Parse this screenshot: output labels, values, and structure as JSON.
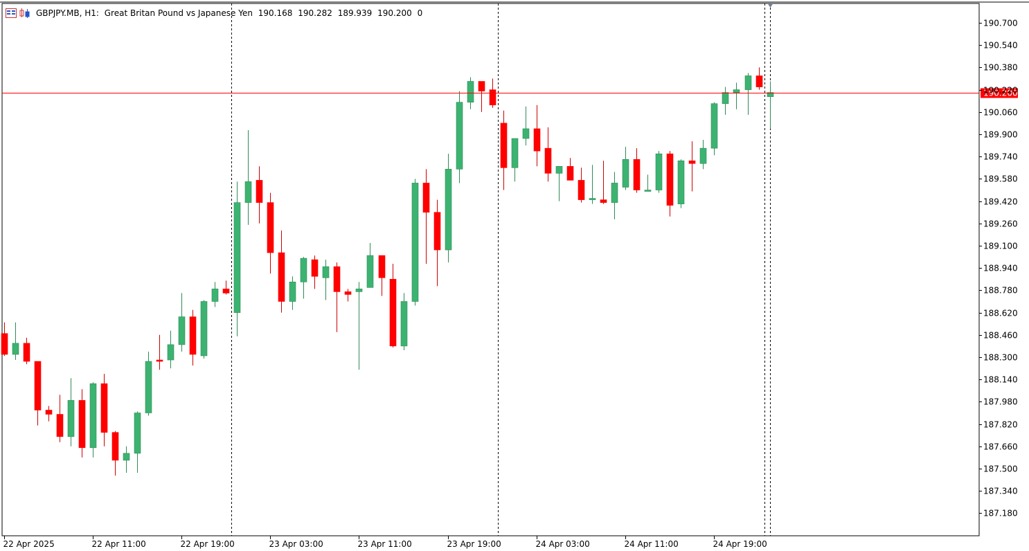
{
  "header": {
    "symbol": "GBPJPY.MB, H1:",
    "description": "Great Britan Pound vs Japanese Yen",
    "open": "190.168",
    "high": "190.282",
    "low": "189.939",
    "close": "190.200",
    "volume": "0"
  },
  "colors": {
    "bull": "#3cb371",
    "bear": "#ff0000",
    "wick_bull": "#2e8b57",
    "wick_bear": "#cc0000",
    "price_line": "#ff0000",
    "grid": "#000000",
    "axis_text": "#000000"
  },
  "chart_data": {
    "type": "candlestick",
    "current_price": "190.200",
    "period_separators_after_index": [
      20,
      44,
      68
    ],
    "y_ticks": [
      "190.700",
      "190.540",
      "190.380",
      "190.220",
      "190.060",
      "189.900",
      "189.740",
      "189.580",
      "189.420",
      "189.260",
      "189.100",
      "188.940",
      "188.780",
      "188.620",
      "188.460",
      "188.300",
      "188.140",
      "187.980",
      "187.820",
      "187.660",
      "187.500",
      "187.340",
      "187.180"
    ],
    "x_ticks": [
      {
        "label": "22 Apr 2025",
        "index": 0
      },
      {
        "label": "22 Apr 11:00",
        "index": 8
      },
      {
        "label": "22 Apr 19:00",
        "index": 16
      },
      {
        "label": "23 Apr 03:00",
        "index": 24
      },
      {
        "label": "23 Apr 11:00",
        "index": 32
      },
      {
        "label": "23 Apr 19:00",
        "index": 40
      },
      {
        "label": "24 Apr 03:00",
        "index": 48
      },
      {
        "label": "24 Apr 11:00",
        "index": 56
      },
      {
        "label": "24 Apr 19:00",
        "index": 64
      }
    ],
    "candles": [
      {
        "o": 188.47,
        "h": 188.55,
        "l": 188.31,
        "c": 188.32
      },
      {
        "o": 188.32,
        "h": 188.55,
        "l": 188.28,
        "c": 188.4
      },
      {
        "o": 188.4,
        "h": 188.44,
        "l": 188.25,
        "c": 188.27
      },
      {
        "o": 188.27,
        "h": 188.27,
        "l": 187.81,
        "c": 187.92
      },
      {
        "o": 187.92,
        "h": 187.95,
        "l": 187.84,
        "c": 187.89
      },
      {
        "o": 187.89,
        "h": 188.03,
        "l": 187.69,
        "c": 187.73
      },
      {
        "o": 187.73,
        "h": 188.15,
        "l": 187.66,
        "c": 187.99
      },
      {
        "o": 187.99,
        "h": 188.07,
        "l": 187.58,
        "c": 187.65
      },
      {
        "o": 187.65,
        "h": 188.12,
        "l": 187.58,
        "c": 188.11
      },
      {
        "o": 188.11,
        "h": 188.18,
        "l": 187.66,
        "c": 187.76
      },
      {
        "o": 187.76,
        "h": 187.77,
        "l": 187.45,
        "c": 187.56
      },
      {
        "o": 187.56,
        "h": 187.66,
        "l": 187.47,
        "c": 187.61
      },
      {
        "o": 187.61,
        "h": 187.91,
        "l": 187.47,
        "c": 187.9
      },
      {
        "o": 187.9,
        "h": 188.34,
        "l": 187.88,
        "c": 188.27
      },
      {
        "o": 188.28,
        "h": 188.46,
        "l": 188.21,
        "c": 188.27
      },
      {
        "o": 188.28,
        "h": 188.49,
        "l": 188.22,
        "c": 188.39
      },
      {
        "o": 188.39,
        "h": 188.76,
        "l": 188.34,
        "c": 188.59
      },
      {
        "o": 188.59,
        "h": 188.64,
        "l": 188.24,
        "c": 188.32
      },
      {
        "o": 188.31,
        "h": 188.71,
        "l": 188.29,
        "c": 188.7
      },
      {
        "o": 188.7,
        "h": 188.84,
        "l": 188.66,
        "c": 188.79
      },
      {
        "o": 188.79,
        "h": 188.85,
        "l": 188.75,
        "c": 188.76
      },
      {
        "o": 188.62,
        "h": 189.56,
        "l": 188.45,
        "c": 189.41
      },
      {
        "o": 189.41,
        "h": 189.93,
        "l": 189.25,
        "c": 189.56
      },
      {
        "o": 189.57,
        "h": 189.67,
        "l": 189.26,
        "c": 189.41
      },
      {
        "o": 189.41,
        "h": 189.48,
        "l": 188.9,
        "c": 189.05
      },
      {
        "o": 189.05,
        "h": 189.21,
        "l": 188.62,
        "c": 188.7
      },
      {
        "o": 188.7,
        "h": 188.88,
        "l": 188.64,
        "c": 188.84
      },
      {
        "o": 188.84,
        "h": 189.02,
        "l": 188.72,
        "c": 189.01
      },
      {
        "o": 189.0,
        "h": 189.03,
        "l": 188.79,
        "c": 188.88
      },
      {
        "o": 188.87,
        "h": 189.0,
        "l": 188.71,
        "c": 188.95
      },
      {
        "o": 188.95,
        "h": 188.98,
        "l": 188.48,
        "c": 188.77
      },
      {
        "o": 188.77,
        "h": 188.79,
        "l": 188.7,
        "c": 188.75
      },
      {
        "o": 188.77,
        "h": 188.84,
        "l": 188.21,
        "c": 188.79
      },
      {
        "o": 188.8,
        "h": 189.12,
        "l": 188.8,
        "c": 189.03
      },
      {
        "o": 189.03,
        "h": 189.03,
        "l": 188.74,
        "c": 188.87
      },
      {
        "o": 188.86,
        "h": 188.97,
        "l": 188.37,
        "c": 188.38
      },
      {
        "o": 188.38,
        "h": 188.76,
        "l": 188.35,
        "c": 188.7
      },
      {
        "o": 188.7,
        "h": 189.58,
        "l": 188.67,
        "c": 189.55
      },
      {
        "o": 189.55,
        "h": 189.65,
        "l": 188.97,
        "c": 189.34
      },
      {
        "o": 189.34,
        "h": 189.43,
        "l": 188.81,
        "c": 189.07
      },
      {
        "o": 189.07,
        "h": 189.76,
        "l": 188.98,
        "c": 189.65
      },
      {
        "o": 189.65,
        "h": 190.21,
        "l": 189.55,
        "c": 190.13
      },
      {
        "o": 190.13,
        "h": 190.31,
        "l": 190.08,
        "c": 190.28
      },
      {
        "o": 190.28,
        "h": 190.28,
        "l": 190.06,
        "c": 190.21
      },
      {
        "o": 190.22,
        "h": 190.3,
        "l": 190.09,
        "c": 190.11
      },
      {
        "o": 189.98,
        "h": 190.07,
        "l": 189.5,
        "c": 189.66
      },
      {
        "o": 189.66,
        "h": 189.87,
        "l": 189.56,
        "c": 189.87
      },
      {
        "o": 189.87,
        "h": 190.1,
        "l": 189.82,
        "c": 189.94
      },
      {
        "o": 189.94,
        "h": 190.11,
        "l": 189.67,
        "c": 189.78
      },
      {
        "o": 189.8,
        "h": 189.95,
        "l": 189.56,
        "c": 189.62
      },
      {
        "o": 189.62,
        "h": 189.67,
        "l": 189.42,
        "c": 189.67
      },
      {
        "o": 189.67,
        "h": 189.73,
        "l": 189.57,
        "c": 189.57
      },
      {
        "o": 189.57,
        "h": 189.66,
        "l": 189.41,
        "c": 189.43
      },
      {
        "o": 189.43,
        "h": 189.68,
        "l": 189.4,
        "c": 189.44
      },
      {
        "o": 189.43,
        "h": 189.71,
        "l": 189.4,
        "c": 189.41
      },
      {
        "o": 189.41,
        "h": 189.63,
        "l": 189.29,
        "c": 189.55
      },
      {
        "o": 189.52,
        "h": 189.81,
        "l": 189.5,
        "c": 189.72
      },
      {
        "o": 189.72,
        "h": 189.8,
        "l": 189.48,
        "c": 189.5
      },
      {
        "o": 189.5,
        "h": 189.61,
        "l": 189.49,
        "c": 189.5
      },
      {
        "o": 189.5,
        "h": 189.78,
        "l": 189.48,
        "c": 189.76
      },
      {
        "o": 189.76,
        "h": 189.78,
        "l": 189.31,
        "c": 189.39
      },
      {
        "o": 189.4,
        "h": 189.72,
        "l": 189.37,
        "c": 189.71
      },
      {
        "o": 189.71,
        "h": 189.85,
        "l": 189.49,
        "c": 189.69
      },
      {
        "o": 189.69,
        "h": 189.86,
        "l": 189.65,
        "c": 189.8
      },
      {
        "o": 189.8,
        "h": 190.13,
        "l": 189.75,
        "c": 190.12
      },
      {
        "o": 190.12,
        "h": 190.24,
        "l": 190.04,
        "c": 190.2
      },
      {
        "o": 190.2,
        "h": 190.27,
        "l": 190.08,
        "c": 190.22
      },
      {
        "o": 190.22,
        "h": 190.34,
        "l": 190.04,
        "c": 190.32
      },
      {
        "o": 190.32,
        "h": 190.38,
        "l": 190.22,
        "c": 190.24
      },
      {
        "o": 190.17,
        "h": 190.28,
        "l": 189.94,
        "c": 190.2
      }
    ]
  }
}
